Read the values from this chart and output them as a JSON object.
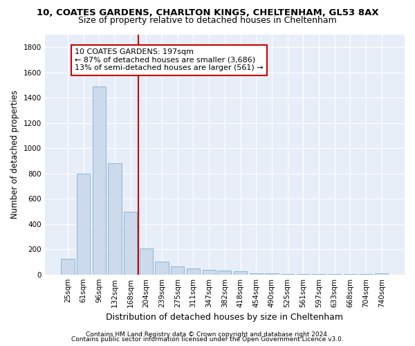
{
  "title1": "10, COATES GARDENS, CHARLTON KINGS, CHELTENHAM, GL53 8AX",
  "title2": "Size of property relative to detached houses in Cheltenham",
  "xlabel": "Distribution of detached houses by size in Cheltenham",
  "ylabel": "Number of detached properties",
  "categories": [
    "25sqm",
    "61sqm",
    "96sqm",
    "132sqm",
    "168sqm",
    "204sqm",
    "239sqm",
    "275sqm",
    "311sqm",
    "347sqm",
    "382sqm",
    "418sqm",
    "454sqm",
    "490sqm",
    "525sqm",
    "561sqm",
    "597sqm",
    "633sqm",
    "668sqm",
    "704sqm",
    "740sqm"
  ],
  "values": [
    125,
    800,
    1490,
    880,
    495,
    205,
    105,
    65,
    45,
    35,
    30,
    25,
    10,
    7,
    5,
    5,
    4,
    3,
    2,
    2,
    10
  ],
  "bar_color": "#ccdaeb",
  "bar_edge_color": "#7aaed6",
  "property_line_x": 4.5,
  "annotation_text": "10 COATES GARDENS: 197sqm\n← 87% of detached houses are smaller (3,686)\n13% of semi-detached houses are larger (561) →",
  "annotation_box_facecolor": "#ffffff",
  "annotation_border_color": "#cc0000",
  "red_line_color": "#cc0000",
  "footer1": "Contains HM Land Registry data © Crown copyright and database right 2024.",
  "footer2": "Contains public sector information licensed under the Open Government Licence v3.0.",
  "ylim": [
    0,
    1900
  ],
  "yticks": [
    0,
    200,
    400,
    600,
    800,
    1000,
    1200,
    1400,
    1600,
    1800
  ],
  "plot_bg_color": "#e8eef8",
  "fig_bg_color": "#ffffff",
  "grid_color": "#ffffff",
  "title1_fontsize": 9.5,
  "title2_fontsize": 9,
  "xlabel_fontsize": 9,
  "ylabel_fontsize": 8.5,
  "tick_fontsize": 7.5,
  "annotation_fontsize": 8,
  "footer_fontsize": 6.5
}
